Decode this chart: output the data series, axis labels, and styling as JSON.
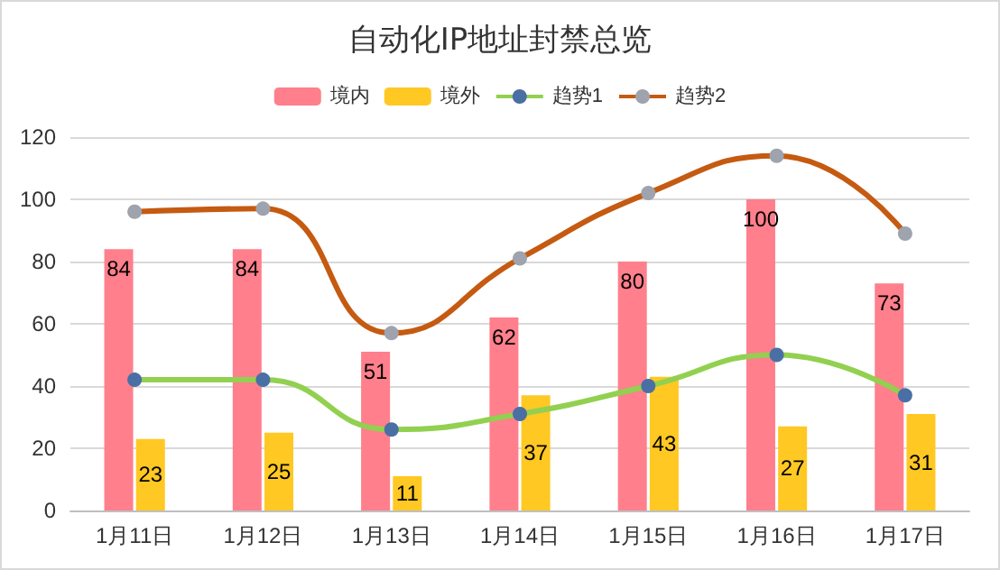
{
  "chart_data": {
    "type": "bar",
    "title": "自动化IP地址封禁总览",
    "categories": [
      "1月11日",
      "1月12日",
      "1月13日",
      "1月14日",
      "1月15日",
      "1月16日",
      "1月17日"
    ],
    "series": [
      {
        "name": "境内",
        "color": "#ff7f8c",
        "values": [
          84,
          84,
          51,
          62,
          80,
          100,
          73
        ],
        "value_labels": [
          "84",
          "84",
          "51",
          "62",
          "80",
          "100",
          "73"
        ]
      },
      {
        "name": "境外",
        "color": "#ffc823",
        "values": [
          23,
          25,
          11,
          37,
          43,
          27,
          31
        ],
        "value_labels": [
          "23",
          "25",
          "11",
          "37",
          "43",
          "27",
          "31"
        ]
      },
      {
        "name": "趋势1",
        "type": "line",
        "color": "#92d050",
        "values": [
          42,
          42,
          26,
          31,
          40,
          50,
          37
        ]
      },
      {
        "name": "趋势2",
        "type": "line",
        "color": "#c55a11",
        "values": [
          96,
          97,
          57,
          81,
          102,
          114,
          89
        ]
      }
    ],
    "ylim": [
      0,
      120
    ],
    "yticks": [
      0,
      20,
      40,
      60,
      80,
      100,
      120
    ],
    "grid": "y",
    "legend": "top",
    "marker": "circle"
  }
}
